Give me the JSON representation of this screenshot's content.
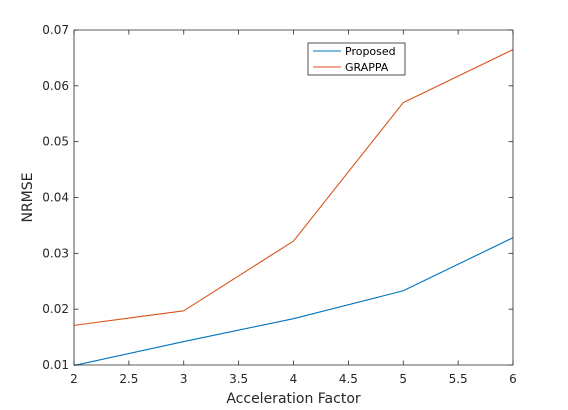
{
  "chart_data": {
    "type": "line",
    "xlabel": "Acceleration Factor",
    "ylabel": "NRMSE",
    "xlim": [
      2,
      6
    ],
    "ylim": [
      0.01,
      0.07
    ],
    "xticks": [
      "2",
      "2.5",
      "3",
      "3.5",
      "4",
      "4.5",
      "5",
      "5.5",
      "6"
    ],
    "yticks": [
      "0.01",
      "0.02",
      "0.03",
      "0.04",
      "0.05",
      "0.06",
      "0.07"
    ],
    "x": [
      2,
      3,
      4,
      5,
      6
    ],
    "series": [
      {
        "name": "Proposed",
        "color": "#0072BD",
        "values": [
          0.0099,
          0.0142,
          0.0183,
          0.0233,
          0.0328
        ]
      },
      {
        "name": "GRAPPA",
        "color": "#D95319",
        "values": [
          0.0171,
          0.0197,
          0.0322,
          0.057,
          0.0665
        ]
      }
    ],
    "grid": false,
    "legend": "top-right"
  }
}
